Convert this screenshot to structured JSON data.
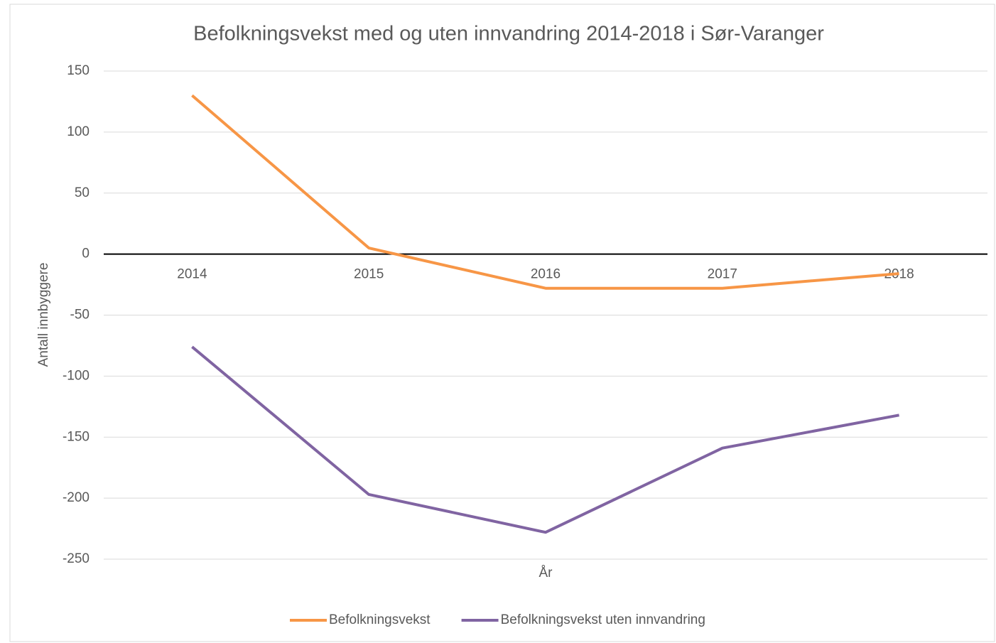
{
  "chart_data": {
    "type": "line",
    "title": "Befolkningsvekst med og uten innvandring 2014-2018 i Sør-Varanger",
    "x_label": "År",
    "y_label": "Antall innbyggere",
    "categories": [
      "2014",
      "2015",
      "2016",
      "2017",
      "2018"
    ],
    "series": [
      {
        "name": "Befolkningsvekst",
        "color": "#f79646",
        "values": [
          130,
          5,
          -28,
          -28,
          -16
        ]
      },
      {
        "name": "Befolkningsvekst uten innvandring",
        "color": "#8064a2",
        "values": [
          -76,
          -197,
          -228,
          -159,
          -132
        ]
      }
    ],
    "ylim": [
      -250,
      150
    ],
    "yticks": [
      -250,
      -200,
      -150,
      -100,
      -50,
      0,
      50,
      100,
      150
    ],
    "grid": true,
    "legend": "bottom"
  }
}
